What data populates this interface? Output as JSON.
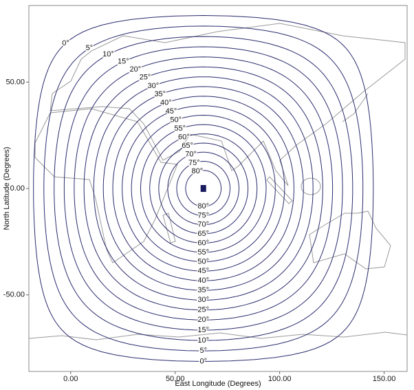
{
  "chart_data": {
    "type": "contour",
    "xlabel": "East Longitude (Degrees)",
    "ylabel": "North Latitude (Degrees)",
    "xlim": [
      -20,
      161
    ],
    "ylim": [
      -86,
      86
    ],
    "xticks": [
      {
        "value": 0,
        "label": "0.00"
      },
      {
        "value": 50,
        "label": "50.00"
      },
      {
        "value": 100,
        "label": "100.00"
      },
      {
        "value": 150,
        "label": "150.00"
      }
    ],
    "yticks": [
      {
        "value": -50,
        "label": "-50.00"
      },
      {
        "value": 0,
        "label": "0.00"
      },
      {
        "value": 50,
        "label": "50.00"
      }
    ],
    "satellite": {
      "lon": 63.5,
      "lat": 0
    },
    "color": "#2a2a6e",
    "levels": [
      {
        "value": 0,
        "label": "0°"
      },
      {
        "value": 5,
        "label": "5°"
      },
      {
        "value": 10,
        "label": "10°"
      },
      {
        "value": 15,
        "label": "15°"
      },
      {
        "value": 20,
        "label": "20°"
      },
      {
        "value": 25,
        "label": "25°"
      },
      {
        "value": 30,
        "label": "30°"
      },
      {
        "value": 35,
        "label": "35°"
      },
      {
        "value": 40,
        "label": "40°"
      },
      {
        "value": 45,
        "label": "45°"
      },
      {
        "value": 50,
        "label": "50°"
      },
      {
        "value": 55,
        "label": "55°"
      },
      {
        "value": 60,
        "label": "60°"
      },
      {
        "value": 65,
        "label": "65°"
      },
      {
        "value": 70,
        "label": "70°"
      },
      {
        "value": 75,
        "label": "75°"
      },
      {
        "value": 80,
        "label": "80°"
      }
    ]
  }
}
